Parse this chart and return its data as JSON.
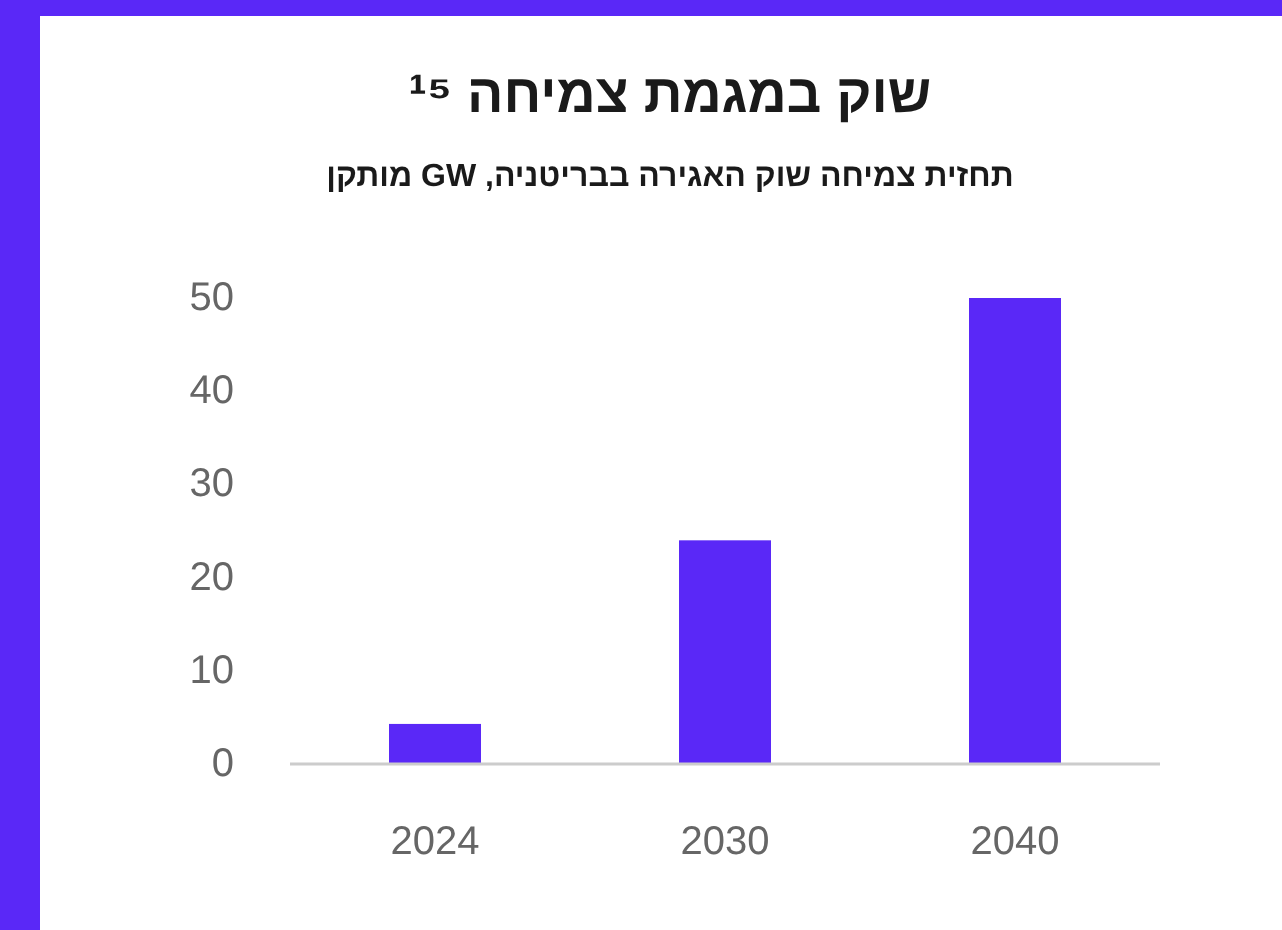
{
  "chart_data": {
    "type": "bar",
    "title": "שוק במגמת צמיחה ¹⁵",
    "subtitle": "תחזית צמיחה שוק האגירה בבריטניה, GW מותקן",
    "categories": [
      "2024",
      "2030",
      "2040"
    ],
    "values": [
      4.3,
      24,
      50
    ],
    "color": "#5a28f7",
    "ylim": [
      0,
      50
    ],
    "yticks": [
      0,
      10,
      20,
      30,
      40,
      50
    ],
    "grid": false
  }
}
